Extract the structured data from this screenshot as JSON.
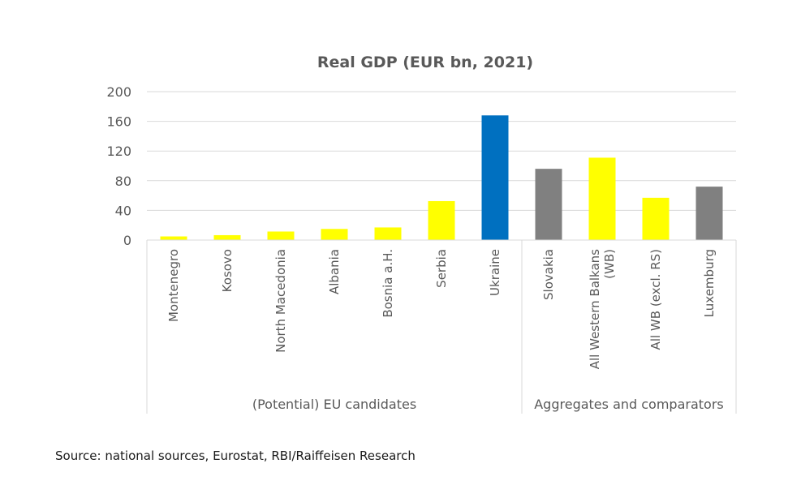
{
  "chart_data": {
    "type": "bar",
    "title": "Real GDP (EUR bn, 2021)",
    "xlabel": "",
    "ylabel": "",
    "ylim": [
      0,
      200
    ],
    "yticks": [
      0,
      40,
      80,
      120,
      160,
      200
    ],
    "grid": true,
    "legend": "none",
    "categories": [
      "Montenegro",
      "Kosovo",
      "North Macedonia",
      "Albania",
      "Bosnia a.H.",
      "Serbia",
      "Ukraine",
      "Slovakia",
      "All Western Balkans (WB)",
      "All WB (excl. RS)",
      "Luxemburg"
    ],
    "category_label_lines": [
      [
        "Montenegro"
      ],
      [
        "Kosovo"
      ],
      [
        "North Macedonia"
      ],
      [
        "Albania"
      ],
      [
        "Bosnia a.H."
      ],
      [
        "Serbia"
      ],
      [
        "Ukraine"
      ],
      [
        "Slovakia"
      ],
      [
        "All Western Balkans",
        "(WB)"
      ],
      [
        "All WB (excl. RS)"
      ],
      [
        "Luxemburg"
      ]
    ],
    "values": [
      4.9,
      6.6,
      11.5,
      15,
      17,
      52.5,
      168,
      96,
      111,
      57,
      72
    ],
    "bar_colors": [
      "#FFFF00",
      "#FFFF00",
      "#FFFF00",
      "#FFFF00",
      "#FFFF00",
      "#FFFF00",
      "#0070C0",
      "#808080",
      "#FFFF00",
      "#FFFF00",
      "#808080"
    ],
    "groups": [
      {
        "label": "(Potential) EU candidates",
        "count": 7
      },
      {
        "label": "Aggregates and comparators",
        "count": 4
      }
    ]
  },
  "source": "Source: national sources, Eurostat, RBI/Raiffeisen Research"
}
